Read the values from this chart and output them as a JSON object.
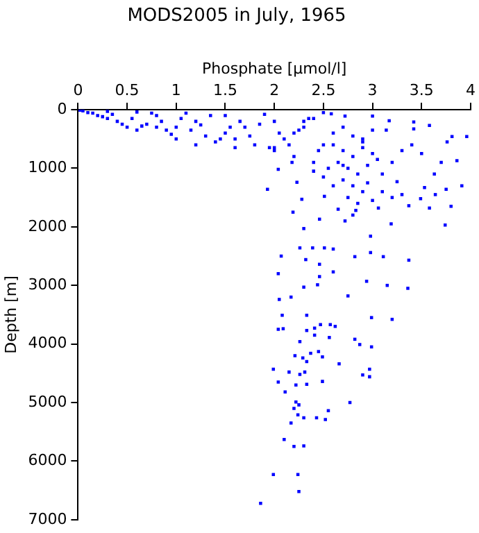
{
  "chart_data": {
    "type": "scatter",
    "title": "MODS2005 in July, 1965",
    "xlabel": "Phosphate [µmol/l]",
    "ylabel": "Depth [m]",
    "xlim": [
      0,
      4
    ],
    "xticks": [
      0,
      0.5,
      1,
      1.5,
      2,
      2.5,
      3,
      3.5,
      4
    ],
    "ylim": [
      7000,
      0
    ],
    "yticks": [
      0,
      1000,
      2000,
      3000,
      4000,
      5000,
      6000,
      7000
    ],
    "grid": false,
    "legend": false,
    "marker": "square",
    "series": [
      {
        "color": "#0000ff",
        "x": [
          0.02,
          0.05,
          0.1,
          0.15,
          0.2,
          0.3,
          0.3,
          0.4,
          0.5,
          0.6,
          0.6,
          0.8,
          1.0,
          1.0,
          1.1,
          1.2,
          1.3,
          1.5,
          1.5,
          1.7,
          1.8,
          1.9,
          2.0,
          2.0,
          2.1,
          2.2,
          2.3,
          2.4,
          2.5,
          2.5,
          0.7,
          0.9,
          1.4,
          1.6,
          2.2,
          2.4,
          2.6,
          2.7,
          2.8,
          2.9,
          3.0,
          2.65,
          2.75,
          2.85,
          2.95,
          3.05,
          2.7,
          2.8,
          2.9,
          2.75,
          2.85,
          2.95,
          3.1,
          3.2,
          3.3,
          3.4,
          3.5,
          2.65,
          2.8,
          2.6,
          2.55,
          2.5,
          2.4,
          3.1,
          3.2,
          3.0,
          2.07,
          2.04,
          2.05,
          2.17,
          2.3,
          2.44,
          2.46,
          2.6,
          2.75,
          2.94,
          3.15,
          3.36,
          3.37,
          3.11,
          2.98,
          2.82,
          2.6,
          2.51,
          2.39,
          2.26,
          2.32,
          2.46,
          2.3,
          2.46,
          2.19,
          2.28,
          1.93,
          2.72,
          2.98,
          3.19,
          3.74,
          3.75,
          3.91,
          3.8,
          3.64,
          3.58,
          3.49,
          3.37,
          3.3,
          3.53,
          3.63,
          3.7,
          3.86,
          3.96,
          3.81,
          3.76,
          3.58,
          3.42,
          3.42,
          3.17,
          3.14,
          3.0,
          2.72,
          2.58,
          2.18,
          2.04,
          2.23,
          2.51,
          2.83,
          3.06,
          3.25,
          2.08,
          2.33,
          3.2,
          2.99,
          2.04,
          2.09,
          2.33,
          2.41,
          2.47,
          2.57,
          2.62,
          2.26,
          2.41,
          2.56,
          2.99,
          2.87,
          2.82,
          2.45,
          2.37,
          2.49,
          2.29,
          2.33,
          2.21,
          2.66,
          2.9,
          2.97,
          2.97,
          1.99,
          2.04,
          2.15,
          2.31,
          2.26,
          2.33,
          2.49,
          2.22,
          2.11,
          2.77,
          2.55,
          2.52,
          2.43,
          2.3,
          2.24,
          2.17,
          2.2,
          2.25,
          2.22,
          2.1,
          2.2,
          2.3,
          2.24,
          1.99,
          2.25,
          1.86,
          0.25,
          0.35,
          0.45,
          0.55,
          0.65,
          0.75,
          0.85,
          0.95,
          1.05,
          1.15,
          1.25,
          1.35,
          1.45,
          1.55,
          1.65,
          1.75,
          1.85,
          1.95,
          2.05,
          2.15,
          2.25,
          2.35,
          2.45,
          0.8,
          1.2,
          1.6,
          2.0,
          2.3,
          2.6,
          2.7,
          2.8,
          2.9,
          3.0,
          2.7,
          2.9
        ],
        "values": [
          10,
          20,
          50,
          60,
          100,
          30,
          150,
          200,
          300,
          40,
          350,
          100,
          300,
          500,
          60,
          200,
          450,
          100,
          400,
          300,
          600,
          80,
          200,
          700,
          500,
          800,
          300,
          900,
          50,
          600,
          250,
          350,
          550,
          650,
          400,
          150,
          600,
          700,
          800,
          650,
          750,
          900,
          1000,
          1100,
          950,
          850,
          1200,
          1300,
          1400,
          1500,
          1600,
          1250,
          1100,
          900,
          700,
          600,
          750,
          1700,
          1800,
          1300,
          1000,
          1150,
          1050,
          1400,
          1500,
          1550,
          2500,
          2800,
          3240,
          3200,
          3030,
          2990,
          2850,
          2770,
          3180,
          2930,
          3000,
          3050,
          2570,
          2510,
          2440,
          2510,
          2380,
          2360,
          2360,
          2360,
          2560,
          2640,
          2030,
          1870,
          1750,
          1530,
          1360,
          1900,
          2160,
          1950,
          1970,
          1360,
          1300,
          1650,
          1450,
          1680,
          1520,
          1640,
          1450,
          1330,
          1100,
          900,
          870,
          460,
          460,
          550,
          270,
          210,
          330,
          190,
          350,
          110,
          110,
          70,
          900,
          1020,
          1240,
          1480,
          1720,
          1680,
          1230,
          3510,
          3510,
          3580,
          3550,
          3750,
          3740,
          3770,
          3730,
          3670,
          3670,
          3700,
          3960,
          3850,
          3890,
          4050,
          4010,
          3920,
          4130,
          4160,
          4220,
          4240,
          4300,
          4200,
          4340,
          4530,
          4560,
          4430,
          4430,
          4650,
          4480,
          4480,
          4520,
          4690,
          4640,
          4700,
          4820,
          5000,
          5140,
          5290,
          5260,
          5260,
          5210,
          5350,
          5100,
          5040,
          4990,
          5630,
          5750,
          5740,
          6230,
          6230,
          6520,
          6720,
          120,
          80,
          250,
          150,
          280,
          60,
          200,
          420,
          150,
          350,
          260,
          100,
          500,
          300,
          200,
          450,
          250,
          650,
          400,
          600,
          350,
          150,
          700,
          300,
          600,
          500,
          650,
          200,
          400,
          300,
          450,
          500,
          350,
          950,
          550
        ]
      }
    ]
  }
}
